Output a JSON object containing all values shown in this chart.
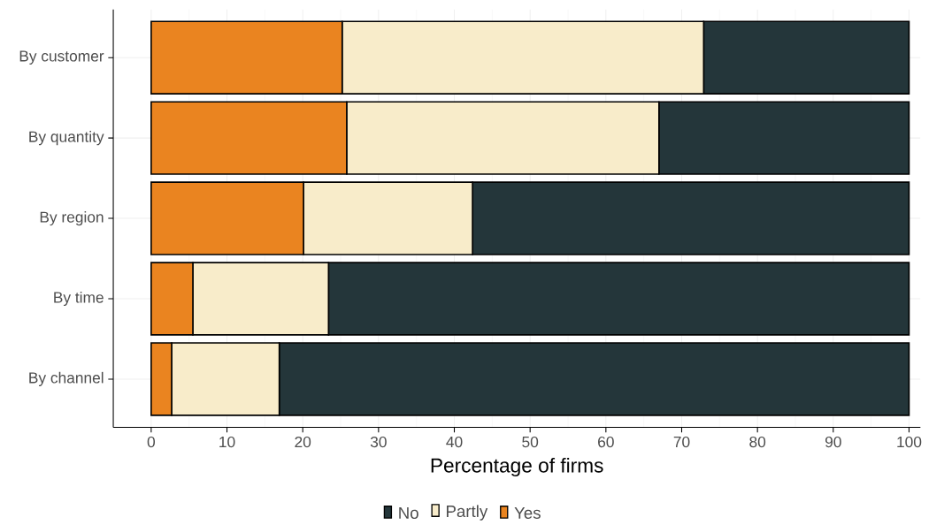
{
  "chart_data": {
    "type": "bar",
    "orientation": "horizontal",
    "stacked": true,
    "categories": [
      "By customer",
      "By quantity",
      "By region",
      "By time",
      "By channel"
    ],
    "series": [
      {
        "name": "Yes",
        "color": "#ea8420",
        "values": [
          25.2,
          25.8,
          20.1,
          5.5,
          2.7
        ]
      },
      {
        "name": "Partly",
        "color": "#f8ecca",
        "values": [
          47.7,
          41.2,
          22.3,
          17.9,
          14.2
        ]
      },
      {
        "name": "No",
        "color": "#24363a",
        "values": [
          27.1,
          33.0,
          57.6,
          76.6,
          83.1
        ]
      }
    ],
    "xlabel": "Percentage of firms",
    "xlim": [
      -5,
      101.5
    ],
    "xticks": [
      0,
      10,
      20,
      30,
      40,
      50,
      60,
      70,
      80,
      90,
      100
    ],
    "grid": true,
    "legend": "bottom"
  }
}
